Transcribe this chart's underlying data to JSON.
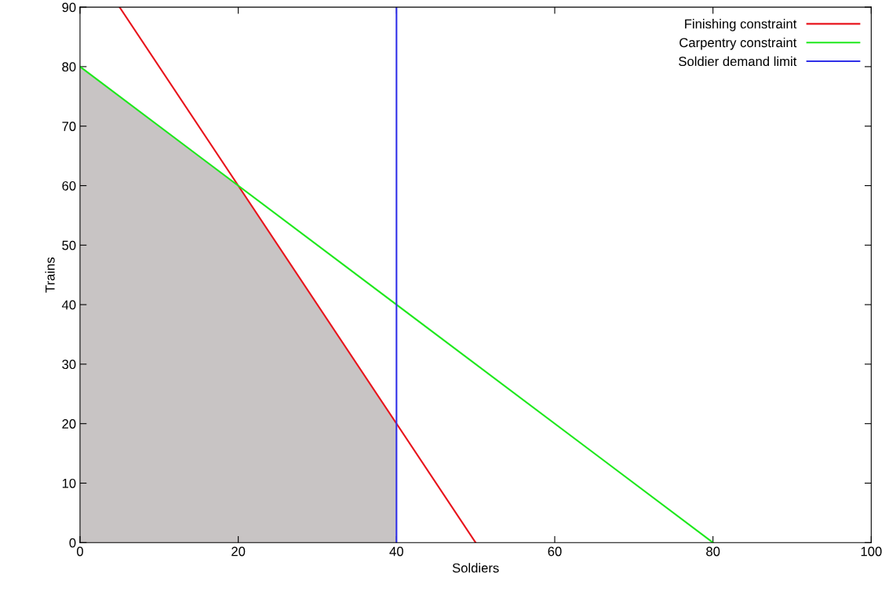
{
  "chart_data": {
    "type": "line",
    "xlabel": "Soldiers",
    "ylabel": "Trains",
    "xlim": [
      0,
      100
    ],
    "ylim": [
      0,
      90
    ],
    "xticks": [
      0,
      20,
      40,
      60,
      80,
      100
    ],
    "yticks": [
      0,
      10,
      20,
      30,
      40,
      50,
      60,
      70,
      80,
      90
    ],
    "grid": false,
    "legend": "top right",
    "line_style": "solid",
    "marker": "none",
    "series": [
      {
        "type": "area",
        "color": "#c8c4c4",
        "x": [
          0,
          20,
          40
        ],
        "values": [
          80,
          60,
          20
        ]
      },
      {
        "name": "Finishing constraint",
        "color": "#e8141c",
        "x": [
          5,
          50
        ],
        "values": [
          90,
          0
        ]
      },
      {
        "name": "Carpentry constraint",
        "color": "#1ee81c",
        "x": [
          0,
          80
        ],
        "values": [
          80,
          0
        ]
      },
      {
        "name": "Soldier demand limit",
        "color": "#3030e8",
        "x": [
          40,
          40
        ],
        "values": [
          0,
          90
        ]
      }
    ]
  }
}
